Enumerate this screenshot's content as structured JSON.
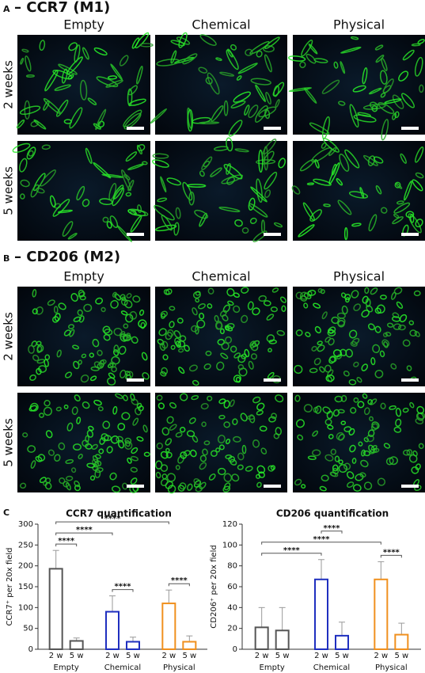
{
  "panel_a": {
    "letter": "A",
    "title": "– CCR7 (M1)",
    "columns": [
      "Empty",
      "Chemical",
      "Physical"
    ],
    "rows": [
      "2 weeks",
      "5 weeks"
    ]
  },
  "panel_b": {
    "letter": "B",
    "title": "– CD206 (M2)",
    "columns": [
      "Empty",
      "Chemical",
      "Physical"
    ],
    "rows": [
      "2 weeks",
      "5 weeks"
    ]
  },
  "panel_c": {
    "letter": "C"
  },
  "chart_data": [
    {
      "type": "bar",
      "title": "CCR7 quantification",
      "y_label": "CCR7⁺ per 20x field",
      "categories": [
        "Empty",
        "Chemical",
        "Physical"
      ],
      "colors": [
        "#555555",
        "#1f2fbf",
        "#f0901e"
      ],
      "series": [
        {
          "name": "2 w",
          "values": [
            193,
            90,
            110
          ],
          "errors": [
            44,
            38,
            32
          ]
        },
        {
          "name": "5 w",
          "values": [
            20,
            18,
            18
          ],
          "errors": [
            7,
            11,
            14
          ]
        }
      ],
      "ylim": [
        0,
        300
      ],
      "yticks": [
        0,
        50,
        100,
        150,
        200,
        250,
        300
      ],
      "significance": [
        {
          "label": "****",
          "bars": [
            [
              0,
              0
            ],
            [
              0,
              1
            ]
          ]
        },
        {
          "label": "****",
          "bars": [
            [
              0,
              0
            ],
            [
              1,
              0
            ]
          ]
        },
        {
          "label": "****",
          "bars": [
            [
              0,
              0
            ],
            [
              2,
              0
            ]
          ]
        },
        {
          "label": "****",
          "bars": [
            [
              1,
              0
            ],
            [
              1,
              1
            ]
          ]
        },
        {
          "label": "****",
          "bars": [
            [
              2,
              0
            ],
            [
              2,
              1
            ]
          ]
        }
      ]
    },
    {
      "type": "bar",
      "title": "CD206 quantification",
      "y_label": "CD206⁺ per 20x field",
      "categories": [
        "Empty",
        "Chemical",
        "Physical"
      ],
      "colors": [
        "#555555",
        "#1f2fbf",
        "#f0901e"
      ],
      "series": [
        {
          "name": "2 w",
          "values": [
            21,
            67,
            67
          ],
          "errors": [
            19,
            19,
            17
          ]
        },
        {
          "name": "5 w",
          "values": [
            18,
            13,
            14
          ],
          "errors": [
            22,
            13,
            11
          ]
        }
      ],
      "ylim": [
        0,
        120
      ],
      "yticks": [
        0,
        20,
        40,
        60,
        80,
        100,
        120
      ],
      "significance": [
        {
          "label": "****",
          "bars": [
            [
              0,
              0
            ],
            [
              1,
              0
            ]
          ]
        },
        {
          "label": "****",
          "bars": [
            [
              0,
              0
            ],
            [
              2,
              0
            ]
          ]
        },
        {
          "label": "****",
          "bars": [
            [
              1,
              0
            ],
            [
              1,
              1
            ]
          ]
        },
        {
          "label": "****",
          "bars": [
            [
              2,
              0
            ],
            [
              2,
              1
            ]
          ]
        }
      ]
    }
  ]
}
